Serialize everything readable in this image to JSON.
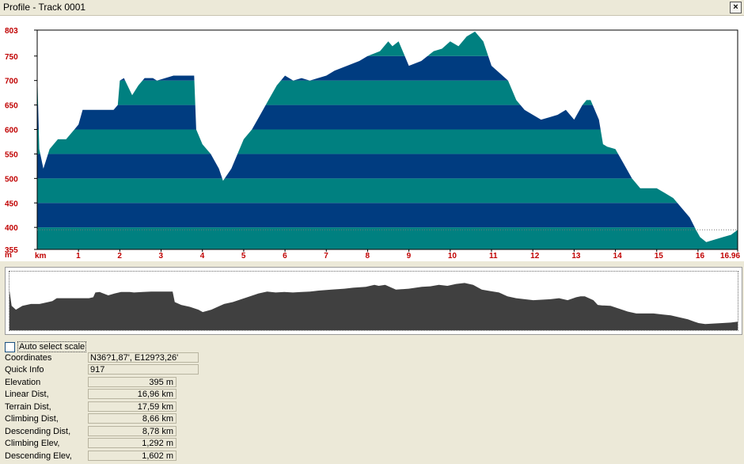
{
  "window": {
    "title": "Profile - Track 0001",
    "close_label": "×"
  },
  "profile_chart": {
    "y_ticks": [
      "803",
      "750",
      "700",
      "650",
      "600",
      "550",
      "500",
      "450",
      "400",
      "355"
    ],
    "y_unit": "m",
    "x_unit": "km",
    "x_ticks": [
      "1",
      "2",
      "3",
      "4",
      "5",
      "6",
      "7",
      "8",
      "9",
      "10",
      "11",
      "12",
      "13",
      "14",
      "15",
      "16",
      "16.96"
    ],
    "colors": {
      "band_a": "#008080",
      "band_b": "#003c80",
      "axis_label": "#c00000",
      "overview": "#404040"
    }
  },
  "chart_data": {
    "type": "area",
    "xlabel": "km",
    "ylabel": "m",
    "xlim": [
      0,
      16.96
    ],
    "ylim": [
      355,
      803
    ],
    "x": [
      0,
      0.05,
      0.15,
      0.3,
      0.5,
      0.7,
      0.9,
      1.0,
      1.1,
      1.3,
      1.5,
      1.7,
      1.85,
      1.95,
      2.0,
      2.1,
      2.3,
      2.45,
      2.6,
      2.8,
      2.9,
      3.1,
      3.3,
      3.5,
      3.6,
      3.8,
      3.85,
      4.0,
      4.2,
      4.4,
      4.5,
      4.7,
      4.9,
      5.0,
      5.2,
      5.4,
      5.6,
      5.8,
      6.0,
      6.2,
      6.4,
      6.6,
      6.8,
      7.0,
      7.2,
      7.5,
      7.8,
      8.0,
      8.3,
      8.5,
      8.6,
      8.75,
      9.0,
      9.3,
      9.6,
      9.8,
      10.0,
      10.2,
      10.4,
      10.6,
      10.8,
      11.0,
      11.2,
      11.4,
      11.6,
      11.8,
      12.0,
      12.2,
      12.4,
      12.6,
      12.8,
      13.0,
      13.2,
      13.3,
      13.4,
      13.6,
      13.7,
      13.8,
      14.0,
      14.2,
      14.4,
      14.6,
      14.8,
      15.0,
      15.2,
      15.4,
      15.6,
      15.8,
      15.95,
      16.05,
      16.2,
      16.4,
      16.6,
      16.8,
      16.96
    ],
    "series": [
      {
        "values": [
          720,
          560,
          520,
          560,
          580,
          580,
          600,
          610,
          640,
          640,
          640,
          640,
          640,
          650,
          700,
          705,
          670,
          690,
          705,
          705,
          700,
          705,
          710,
          710,
          710,
          710,
          600,
          570,
          550,
          520,
          495,
          520,
          560,
          580,
          600,
          630,
          660,
          690,
          710,
          700,
          705,
          700,
          705,
          710,
          720,
          730,
          740,
          750,
          760,
          780,
          770,
          780,
          730,
          740,
          760,
          765,
          780,
          770,
          790,
          800,
          780,
          730,
          715,
          700,
          660,
          640,
          630,
          620,
          625,
          630,
          640,
          620,
          650,
          660,
          660,
          620,
          570,
          565,
          560,
          530,
          500,
          480,
          480,
          480,
          470,
          460,
          440,
          420,
          395,
          380,
          370,
          375,
          380,
          385,
          395
        ]
      }
    ]
  },
  "auto_select": {
    "label": "Auto select scale",
    "checked": false
  },
  "info": {
    "coordinates": {
      "label": "Coordinates",
      "value": "N36?1,87', E129?3,26'"
    },
    "quick_info": {
      "label": "Quick Info",
      "value": "917"
    },
    "elevation": {
      "label": "Elevation",
      "value": "395 m"
    },
    "linear_dist": {
      "label": "Linear Dist,",
      "value": "16,96 km"
    },
    "terrain_dist": {
      "label": "Terrain Dist,",
      "value": "17,59 km"
    },
    "climbing_dist": {
      "label": "Climbing Dist,",
      "value": "8,66 km"
    },
    "descending_dist": {
      "label": "Descending Dist,",
      "value": "8,78 km"
    },
    "climbing_elev": {
      "label": "Climbing Elev,",
      "value": "1,292 m"
    },
    "descending_elev": {
      "label": "Descending Elev,",
      "value": "1,602 m"
    }
  }
}
